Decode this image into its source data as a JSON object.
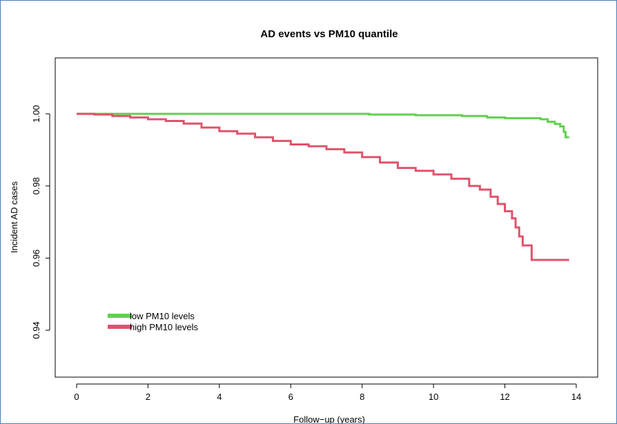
{
  "chart_data": {
    "type": "line",
    "title": "AD events vs PM10 quantile",
    "xlabel": "Follow−up (years)",
    "ylabel": "Incident AD cases",
    "xlim": [
      -0.6,
      14.6
    ],
    "ylim": [
      0.927,
      1.0155
    ],
    "x_ticks": [
      0,
      2,
      4,
      6,
      8,
      10,
      12,
      14
    ],
    "x_tick_labels": [
      "0",
      "2",
      "4",
      "6",
      "8",
      "10",
      "12",
      "14"
    ],
    "y_ticks": [
      0.94,
      0.96,
      0.98,
      1.0
    ],
    "y_tick_labels": [
      "0.94",
      "0.96",
      "0.98",
      "1.00"
    ],
    "legend_position": "bottom-left",
    "series": [
      {
        "name": "low PM10 levels",
        "color": "#61d04f",
        "x": [
          0,
          5.5,
          8.2,
          9.5,
          10.8,
          11.5,
          12.0,
          13.0,
          13.2,
          13.4,
          13.55,
          13.65,
          13.7,
          13.8
        ],
        "y": [
          1.0,
          1.0,
          0.9998,
          0.9996,
          0.9994,
          0.999,
          0.9988,
          0.9985,
          0.9978,
          0.9972,
          0.9965,
          0.995,
          0.9935,
          0.9935
        ]
      },
      {
        "name": "high PM10 levels",
        "color": "#df536b",
        "x": [
          0,
          0.5,
          1.0,
          1.5,
          2.0,
          2.5,
          3.0,
          3.5,
          4.0,
          4.5,
          5.0,
          5.5,
          6.0,
          6.5,
          7.0,
          7.5,
          8.0,
          8.5,
          9.0,
          9.5,
          10.0,
          10.5,
          11.0,
          11.3,
          11.6,
          11.8,
          12.0,
          12.2,
          12.3,
          12.4,
          12.5,
          12.75,
          13.8
        ],
        "y": [
          1.0,
          0.9998,
          0.9994,
          0.999,
          0.9985,
          0.998,
          0.9973,
          0.9962,
          0.9952,
          0.9945,
          0.9935,
          0.9925,
          0.9915,
          0.991,
          0.9902,
          0.9893,
          0.988,
          0.9865,
          0.985,
          0.9842,
          0.9832,
          0.982,
          0.98,
          0.979,
          0.977,
          0.975,
          0.973,
          0.971,
          0.9685,
          0.966,
          0.9635,
          0.9595,
          0.9595
        ]
      }
    ]
  }
}
